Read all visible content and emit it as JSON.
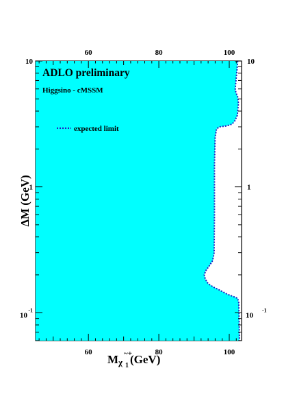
{
  "chart_data": {
    "type": "area",
    "title": "ADLO preliminary",
    "subtitle": "Higgsino - cMSSM",
    "xlabel_main": "M",
    "xlabel_sub": "χ",
    "xlabel_sup": "~+",
    "xlabel_sub2": "1",
    "xlabel_unit": "(GeV)",
    "ylabel": "ΔM (GeV)",
    "x_scale": "linear",
    "y_scale": "log",
    "xlim": [
      45,
      103.5
    ],
    "ylim": [
      0.06,
      10
    ],
    "x_ticks": [
      {
        "value": 60,
        "label": "60"
      },
      {
        "value": 80,
        "label": "80"
      },
      {
        "value": 100,
        "label": "100"
      }
    ],
    "y_ticks": [
      {
        "value": 10,
        "base": "10",
        "exp": ""
      },
      {
        "value": 1,
        "base": "1",
        "exp": ""
      },
      {
        "value": 0.1,
        "base": "10",
        "exp": "-1"
      }
    ],
    "legend": {
      "label": "expected limit",
      "style": "dotted",
      "color": "#2020c0"
    },
    "fill_color": "#00ffff",
    "series": [
      {
        "name": "expected limit",
        "style": "dotted",
        "points": [
          [
            102.4,
            10
          ],
          [
            102.2,
            8.5
          ],
          [
            101.9,
            7.0
          ],
          [
            101.7,
            6.0
          ],
          [
            101.9,
            5.6
          ],
          [
            102.4,
            5.2
          ],
          [
            102.6,
            4.6
          ],
          [
            102.3,
            3.7
          ],
          [
            101.6,
            3.35
          ],
          [
            100.8,
            3.15
          ],
          [
            99.2,
            3.05
          ],
          [
            97.4,
            3.0
          ],
          [
            96.4,
            2.9
          ],
          [
            96.0,
            2.5
          ],
          [
            95.8,
            1.5
          ],
          [
            95.8,
            0.6
          ],
          [
            95.7,
            0.3
          ],
          [
            95.3,
            0.26
          ],
          [
            94.3,
            0.235
          ],
          [
            93.3,
            0.215
          ],
          [
            92.9,
            0.2
          ],
          [
            93.2,
            0.185
          ],
          [
            94.0,
            0.17
          ],
          [
            95.5,
            0.16
          ],
          [
            97.5,
            0.15
          ],
          [
            99.5,
            0.14
          ],
          [
            101.0,
            0.135
          ],
          [
            102.4,
            0.13
          ],
          [
            102.7,
            0.12
          ],
          [
            102.8,
            0.09
          ],
          [
            102.9,
            0.06
          ]
        ]
      }
    ]
  }
}
